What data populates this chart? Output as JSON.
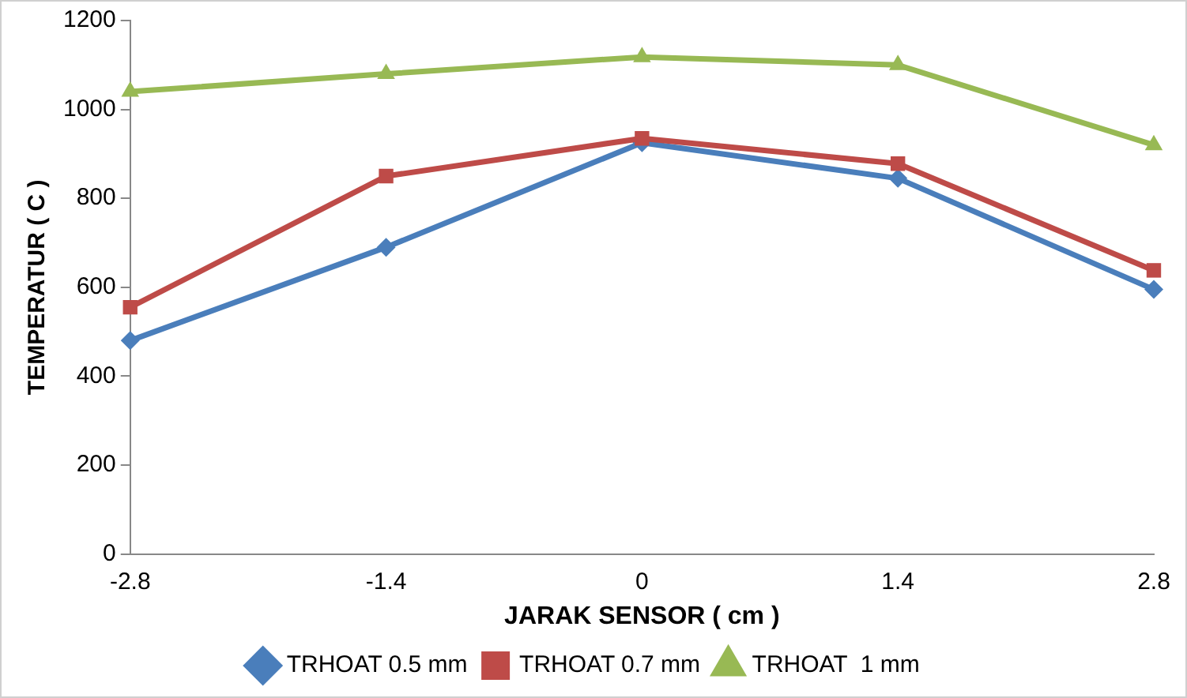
{
  "chart_data": {
    "type": "line",
    "xlabel": "JARAK SENSOR ( cm )",
    "ylabel": "TEMPERATUR ( C )",
    "categories": [
      "-2.8",
      "-1.4",
      "0",
      "1.4",
      "2.8"
    ],
    "series": [
      {
        "name": "TRHOAT 0.5 mm",
        "color": "#4a7ebb",
        "marker": "diamond",
        "values": [
          480,
          690,
          925,
          845,
          595
        ]
      },
      {
        "name": "TRHOAT 0.7 mm",
        "color": "#be4b48",
        "marker": "square",
        "values": [
          555,
          850,
          935,
          878,
          638
        ]
      },
      {
        "name": "TRHOAT  1 mm",
        "color": "#98b954",
        "marker": "triangle",
        "values": [
          1040,
          1080,
          1118,
          1100,
          920
        ]
      }
    ],
    "ylim": [
      0,
      1200
    ],
    "yticks": [
      0,
      200,
      400,
      600,
      800,
      1000,
      1200
    ],
    "grid": false,
    "legend": "bottom"
  }
}
